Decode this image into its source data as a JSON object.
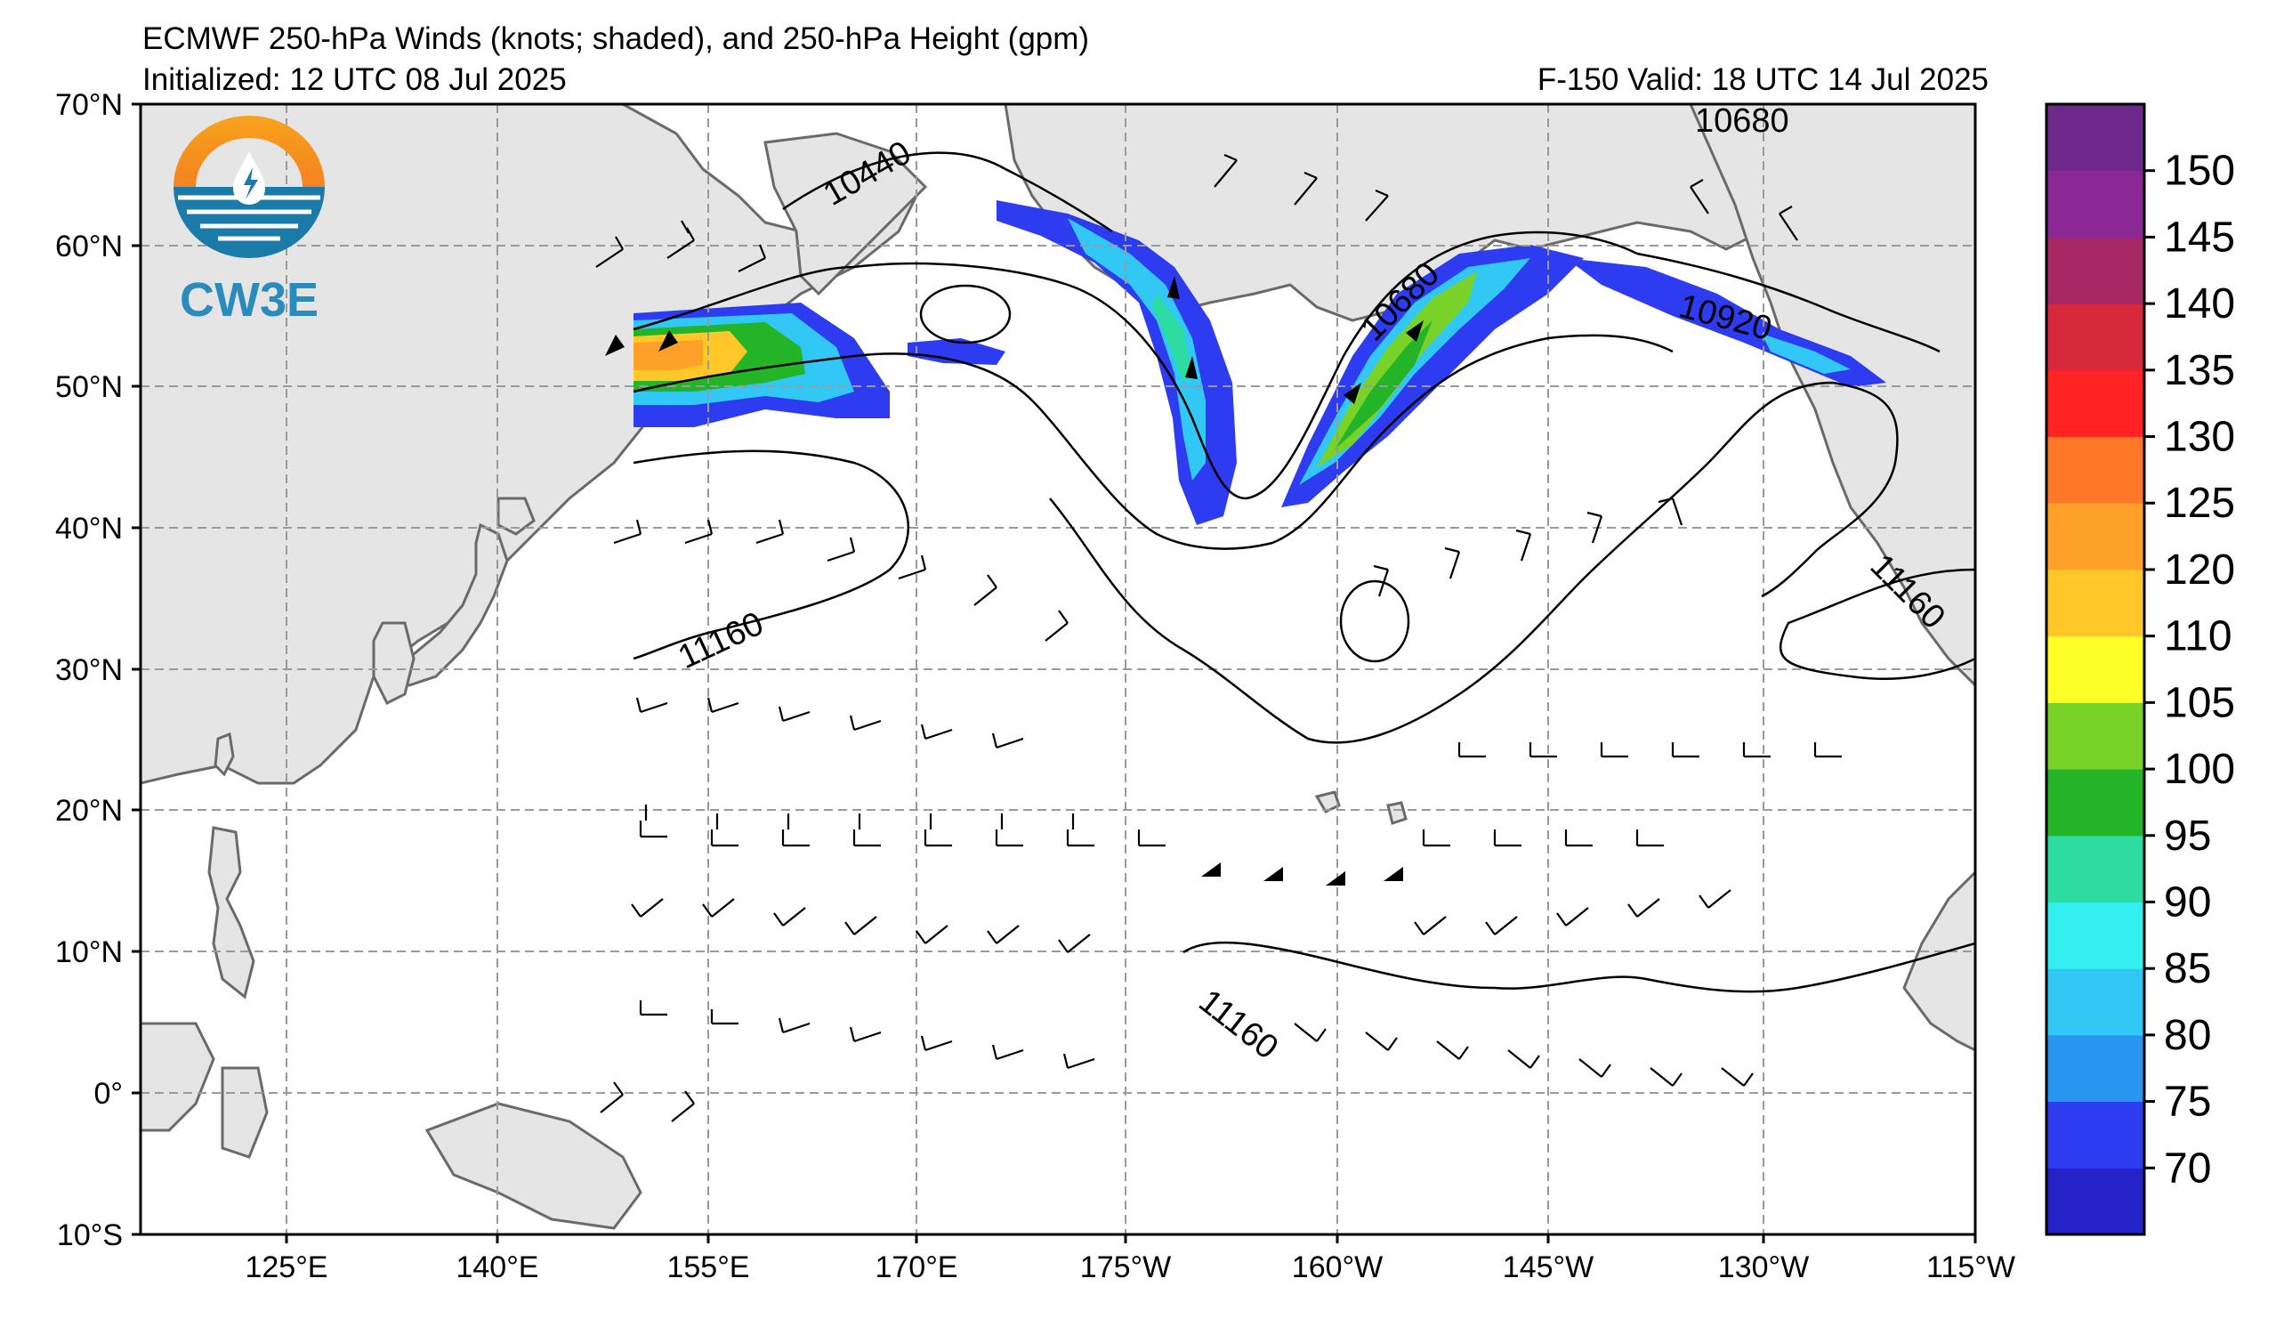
{
  "header": {
    "title": "ECMWF 250-hPa Winds (knots; shaded), and 250-hPa Height (gpm)",
    "initialized": "Initialized: 12 UTC 08 Jul 2025",
    "valid": "F-150  Valid: 18 UTC 14 Jul 2025"
  },
  "logo": {
    "text": "CW3E",
    "icon": "water-drop-sun-icon"
  },
  "map": {
    "lon_labels": [
      "125°E",
      "140°E",
      "155°E",
      "170°E",
      "175°W",
      "160°W",
      "145°W",
      "130°W",
      "115°W"
    ],
    "lat_labels": [
      "70°N",
      "60°N",
      "50°N",
      "40°N",
      "30°N",
      "20°N",
      "10°N",
      "0°",
      "10°S"
    ],
    "contour_labels": [
      "10440",
      "10680",
      "10680",
      "10920",
      "11160",
      "11160",
      "11160"
    ],
    "colors": {
      "land": "#e5e5e5",
      "coast": "#6a6a6a",
      "grid": "#9a9a9a",
      "contour": "#000000"
    }
  },
  "colorbar": {
    "ticks": [
      "150",
      "145",
      "140",
      "135",
      "130",
      "125",
      "120",
      "110",
      "105",
      "100",
      "95",
      "90",
      "85",
      "80",
      "75",
      "70"
    ],
    "colors": [
      "#2323c8",
      "#2d3cf0",
      "#2896f0",
      "#32c8f5",
      "#32f0f0",
      "#2ddca0",
      "#23b428",
      "#78d228",
      "#ffff28",
      "#ffc828",
      "#ffa028",
      "#ff7828",
      "#ff2323",
      "#d7283c",
      "#a52864",
      "#8c2896",
      "#6e288c"
    ]
  },
  "jets": [
    {
      "name": "jet-west",
      "max_knots": 125
    },
    {
      "name": "jet-aleutian",
      "max_knots": 85
    },
    {
      "name": "jet-trough",
      "max_knots": 90
    },
    {
      "name": "jet-gulf-alaska",
      "max_knots": 100
    },
    {
      "name": "jet-bc-coast",
      "max_knots": 80
    }
  ]
}
